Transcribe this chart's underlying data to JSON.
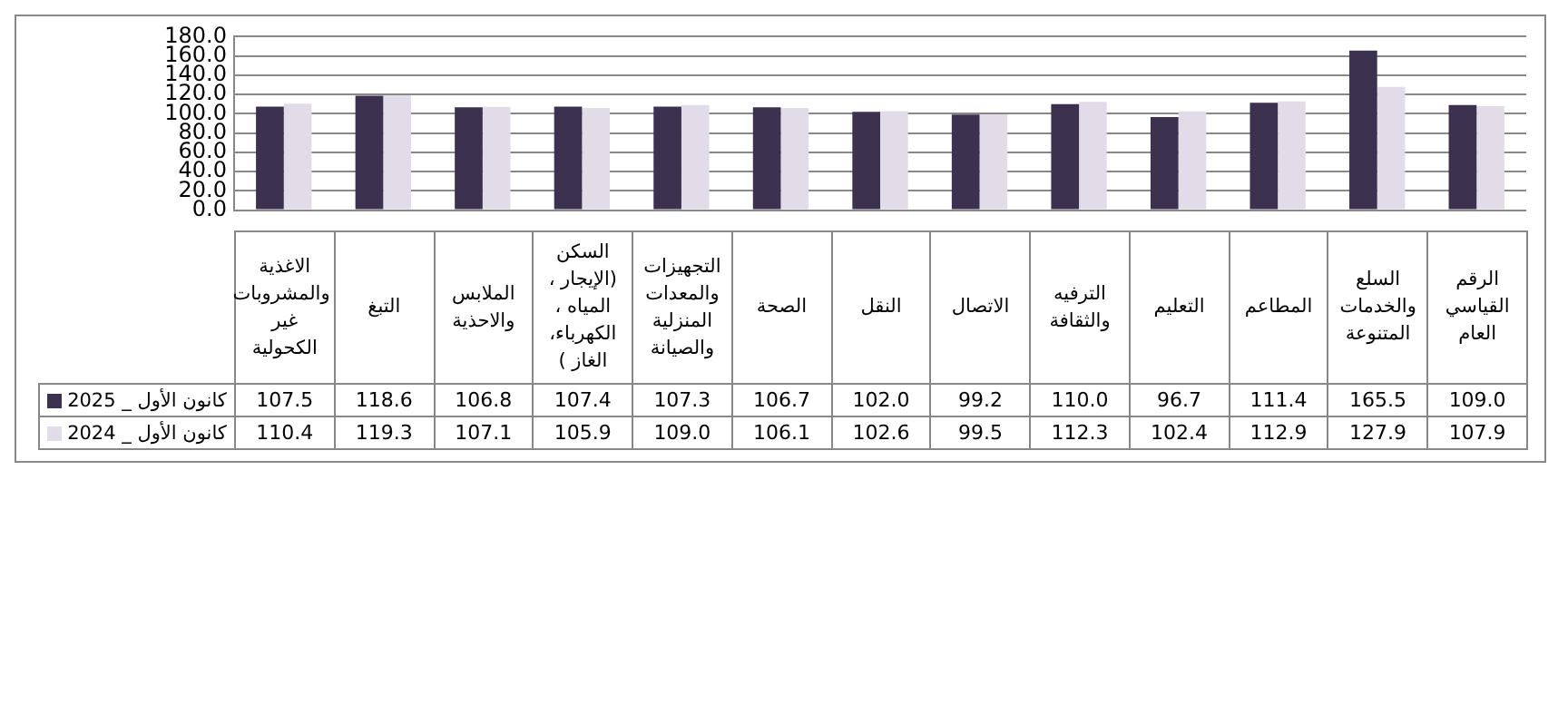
{
  "chart_data": {
    "type": "bar",
    "categories": [
      "الاغذية والمشروبات غير الكحولية",
      "التبغ",
      "الملابس والاحذية",
      "السكن (الإيجار ، المياه ، الكهرباء، الغاز )",
      "التجهيزات والمعدات المنزلية والصيانة",
      "الصحة",
      "النقل",
      "الاتصال",
      "الترفيه والثقافة",
      "التعليم",
      "المطاعم",
      "السلع والخدمات المتنوعة",
      "الرقم القياسي العام"
    ],
    "series": [
      {
        "name": "كانون الأول _ 2025",
        "color": "#3d3150",
        "values": [
          107.5,
          118.6,
          106.8,
          107.4,
          107.3,
          106.7,
          102.0,
          99.2,
          110.0,
          96.7,
          111.4,
          165.5,
          109.0
        ],
        "value_labels": [
          "107.5",
          "118.6",
          "106.8",
          "107.4",
          "107.3",
          "106.7",
          "102.0",
          "99.2",
          "110.0",
          "96.7",
          "111.4",
          "165.5",
          "109.0"
        ]
      },
      {
        "name": "كانون الأول _ 2024",
        "color": "#e2dce8",
        "values": [
          110.4,
          119.3,
          107.1,
          105.9,
          109.0,
          106.1,
          102.6,
          99.5,
          112.3,
          102.4,
          112.9,
          127.9,
          107.9
        ],
        "value_labels": [
          "110.4",
          "119.3",
          "107.1",
          "105.9",
          "109.0",
          "106.1",
          "102.6",
          "99.5",
          "112.3",
          "102.4",
          "112.9",
          "127.9",
          "107.9"
        ]
      }
    ],
    "ylim": [
      0,
      180
    ],
    "yticks": [
      {
        "value": 0,
        "label": "0.0"
      },
      {
        "value": 20,
        "label": "20.0"
      },
      {
        "value": 40,
        "label": "40.0"
      },
      {
        "value": 60,
        "label": "60.0"
      },
      {
        "value": 80,
        "label": "80.0"
      },
      {
        "value": 100,
        "label": "100.0"
      },
      {
        "value": 120,
        "label": "120.0"
      },
      {
        "value": 140,
        "label": "140.0"
      },
      {
        "value": 160,
        "label": "160.0"
      },
      {
        "value": 180,
        "label": "180.0"
      }
    ],
    "grid": "y",
    "legend": "bottom left"
  }
}
